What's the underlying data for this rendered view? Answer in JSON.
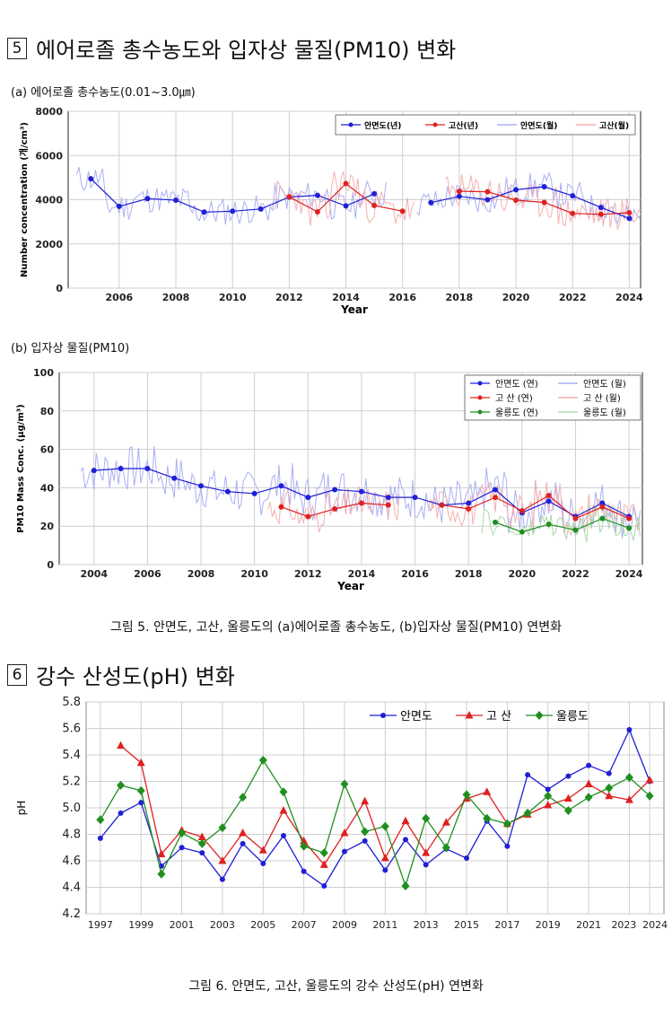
{
  "section5": {
    "number": "5",
    "title": "에어로졸 총수농도와 입자상 물질(PM10) 변화",
    "sub_a": "(a) 에어로졸 총수농도(0.01~3.0㎛)",
    "sub_b": "(b) 입자상 물질(PM10)",
    "caption": "그림 5. 안면도, 고산, 울릉도의 (a)에어로졸 총수농도, (b)입자상 물질(PM10) 연변화"
  },
  "section6": {
    "number": "6",
    "title": "강수 산성도(pH) 변화",
    "caption": "그림 6. 안면도, 고산, 울릉도의 강수 산성도(pH) 연변화"
  },
  "chart_data": [
    {
      "id": "a",
      "type": "line",
      "title": "",
      "xlabel": "Year",
      "ylabel": "Number concentration (개/cm³)",
      "xlim": [
        2004.2,
        2024.4
      ],
      "ylim": [
        0,
        8000
      ],
      "xticks": [
        2006,
        2008,
        2010,
        2012,
        2014,
        2016,
        2018,
        2020,
        2022,
        2024
      ],
      "yticks": [
        0,
        2000,
        4000,
        6000,
        8000
      ],
      "grid": true,
      "legend": "top-right",
      "series": [
        {
          "name": "안면도(년)",
          "color": "#1f1fd6",
          "marker": "circle",
          "x": [
            2005,
            2006,
            2007,
            2008,
            2009,
            2010,
            2011,
            2012,
            2013,
            2014,
            2015,
            null,
            2017,
            2018,
            2019,
            2020,
            2021,
            2022,
            2023,
            2024
          ],
          "y": [
            4950,
            3700,
            4050,
            3980,
            3440,
            3480,
            3580,
            4120,
            4200,
            3720,
            4270,
            null,
            3870,
            4150,
            4000,
            4450,
            4590,
            4180,
            3650,
            3150
          ]
        },
        {
          "name": "고산(년)",
          "color": "#e02020",
          "marker": "circle",
          "x": [
            2012,
            2013,
            2014,
            2015,
            2016,
            null,
            2018,
            2019,
            2020,
            2021,
            2022,
            2023,
            2024
          ],
          "y": [
            4130,
            3450,
            4730,
            3740,
            3480,
            null,
            4380,
            4360,
            3980,
            3880,
            3380,
            3340,
            3410
          ]
        },
        {
          "name": "안면도(월)",
          "color": "#9aa0ee",
          "marker": "none",
          "x": [],
          "y": []
        },
        {
          "name": "고산(월)",
          "color": "#f0a0a0",
          "marker": "none",
          "x": [],
          "y": []
        }
      ]
    },
    {
      "id": "b",
      "type": "line",
      "title": "",
      "xlabel": "Year",
      "ylabel": "PM10 Mass Conc. (μg/m³)",
      "xlim": [
        2002.7,
        2024.5
      ],
      "ylim": [
        0,
        100
      ],
      "xticks": [
        2004,
        2006,
        2008,
        2010,
        2012,
        2014,
        2016,
        2018,
        2020,
        2022,
        2024
      ],
      "yticks": [
        0,
        20,
        40,
        60,
        80,
        100
      ],
      "grid": true,
      "legend": "top-right",
      "series": [
        {
          "name": "안면도 (연)",
          "color": "#1f1fd6",
          "marker": "circle",
          "x": [
            2004,
            2005,
            2006,
            2007,
            2008,
            2009,
            2010,
            2011,
            2012,
            2013,
            2014,
            2015,
            2016,
            2017,
            2018,
            2019,
            2020,
            2021,
            2022,
            2023,
            2024
          ],
          "y": [
            49,
            50,
            50,
            45,
            41,
            38,
            37,
            41,
            35,
            39,
            38,
            35,
            35,
            31,
            32,
            39,
            27,
            33,
            25,
            32,
            25
          ]
        },
        {
          "name": "고 산 (연)",
          "color": "#e02020",
          "marker": "circle",
          "x": [
            2011,
            2012,
            2013,
            2014,
            2015,
            null,
            2017,
            2018,
            2019,
            2020,
            2021,
            2022,
            2023,
            2024
          ],
          "y": [
            30,
            25,
            29,
            32,
            31,
            null,
            31,
            29,
            35,
            28,
            36,
            24,
            30,
            24
          ]
        },
        {
          "name": "울릉도 (연)",
          "color": "#1f8f1f",
          "marker": "circle",
          "x": [
            2019,
            2020,
            2021,
            2022,
            2023,
            2024
          ],
          "y": [
            22,
            17,
            21,
            18,
            24,
            19
          ]
        },
        {
          "name": "안면도 (월)",
          "color": "#9aa0ee",
          "marker": "none",
          "x": [],
          "y": []
        },
        {
          "name": "고 산 (월)",
          "color": "#f0a0a0",
          "marker": "none",
          "x": [],
          "y": []
        },
        {
          "name": "울릉도 (월)",
          "color": "#9fd49f",
          "marker": "none",
          "x": [],
          "y": []
        }
      ]
    },
    {
      "id": "c",
      "type": "line",
      "title": "",
      "xlabel": "",
      "ylabel": "pH",
      "xlim": [
        1996.3,
        2024.7
      ],
      "ylim": [
        4.2,
        5.8
      ],
      "xticks": [
        1997,
        1999,
        2001,
        2003,
        2005,
        2007,
        2009,
        2011,
        2013,
        2015,
        2017,
        2019,
        2021,
        2023,
        2024
      ],
      "yticks": [
        4.2,
        4.4,
        4.6,
        4.8,
        5.0,
        5.2,
        5.4,
        5.6,
        5.8
      ],
      "ytick_labels": [
        "4.2",
        "4.4",
        "4.6",
        "4.8",
        "5.0",
        "5.2",
        "5.4",
        "5.6",
        "5.8"
      ],
      "grid": true,
      "legend": "top-right",
      "series": [
        {
          "name": "안면도",
          "color": "#1f1fd6",
          "marker": "circle",
          "x": [
            1997,
            1998,
            1999,
            2000,
            2001,
            2002,
            2003,
            2004,
            2005,
            2006,
            2007,
            2008,
            2009,
            2010,
            2011,
            2012,
            2013,
            2014,
            2015,
            2016,
            2017,
            2018,
            2019,
            2020,
            2021,
            2022,
            2023,
            2024
          ],
          "y": [
            4.77,
            4.96,
            5.04,
            4.56,
            4.7,
            4.66,
            4.46,
            4.73,
            4.58,
            4.79,
            4.52,
            4.41,
            4.67,
            4.75,
            4.53,
            4.76,
            4.57,
            4.69,
            4.62,
            4.9,
            4.71,
            5.25,
            5.14,
            5.24,
            5.32,
            5.26,
            5.59,
            5.2
          ]
        },
        {
          "name": "고 산",
          "color": "#e02020",
          "marker": "triangle",
          "x": [
            1998,
            1999,
            2000,
            2001,
            2002,
            2003,
            2004,
            2005,
            2006,
            2007,
            2008,
            2009,
            2010,
            2011,
            2012,
            2013,
            2014,
            2015,
            2016,
            2017,
            2018,
            2019,
            2020,
            2021,
            2022,
            2023,
            2024
          ],
          "y": [
            5.47,
            5.34,
            4.65,
            4.83,
            4.78,
            4.6,
            4.81,
            4.68,
            4.98,
            4.75,
            4.57,
            4.81,
            5.05,
            4.62,
            4.9,
            4.66,
            4.89,
            5.07,
            5.12,
            4.88,
            4.95,
            5.02,
            5.07,
            5.18,
            5.09,
            5.06,
            5.21
          ]
        },
        {
          "name": "울릉도",
          "color": "#1f8f1f",
          "marker": "diamond",
          "x": [
            1997,
            1998,
            1999,
            2000,
            2001,
            2002,
            2003,
            2004,
            2005,
            2006,
            2007,
            2008,
            2009,
            2010,
            2011,
            2012,
            2013,
            2014,
            2015,
            2016,
            2017,
            2018,
            2019,
            2020,
            2021,
            2022,
            2023,
            2024
          ],
          "y": [
            4.91,
            5.17,
            5.13,
            4.5,
            4.81,
            4.73,
            4.85,
            5.08,
            5.36,
            5.12,
            4.71,
            4.66,
            5.18,
            4.82,
            4.86,
            4.41,
            4.92,
            4.7,
            5.1,
            4.92,
            4.88,
            4.96,
            5.09,
            4.98,
            5.08,
            5.15,
            5.23,
            5.09
          ]
        }
      ]
    }
  ]
}
